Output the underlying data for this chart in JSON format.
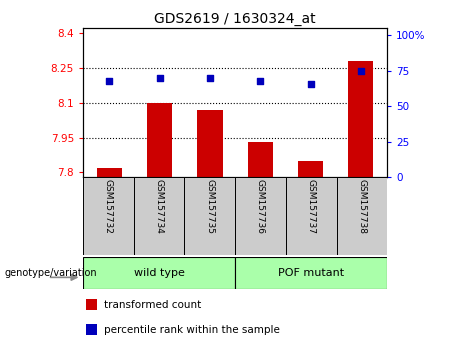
{
  "title": "GDS2619 / 1630324_at",
  "samples": [
    "GSM157732",
    "GSM157734",
    "GSM157735",
    "GSM157736",
    "GSM157737",
    "GSM157738"
  ],
  "transformed_count": [
    7.82,
    8.1,
    8.07,
    7.93,
    7.85,
    8.28
  ],
  "percentile_rank": [
    68,
    70,
    70,
    68,
    66,
    75
  ],
  "ylim_left": [
    7.78,
    8.42
  ],
  "ylim_right": [
    0,
    105
  ],
  "yticks_left": [
    7.8,
    7.95,
    8.1,
    8.25,
    8.4
  ],
  "ytick_labels_left": [
    "7.8",
    "7.95",
    "8.1",
    "8.25",
    "8.4"
  ],
  "yticks_right": [
    0,
    25,
    50,
    75,
    100
  ],
  "ytick_labels_right": [
    "0",
    "25",
    "50",
    "75",
    "100%"
  ],
  "hlines": [
    7.95,
    8.1,
    8.25
  ],
  "bar_color": "#cc0000",
  "dot_color": "#0000bb",
  "bar_width": 0.5,
  "legend_items": [
    {
      "color": "#cc0000",
      "label": "transformed count"
    },
    {
      "color": "#0000bb",
      "label": "percentile rank within the sample"
    }
  ],
  "genotype_label": "genotype/variation",
  "group1_label": "wild type",
  "group2_label": "POF mutant",
  "group_color": "#aaffaa",
  "xlabel_area_color": "#cccccc",
  "bar_baseline": 7.78
}
